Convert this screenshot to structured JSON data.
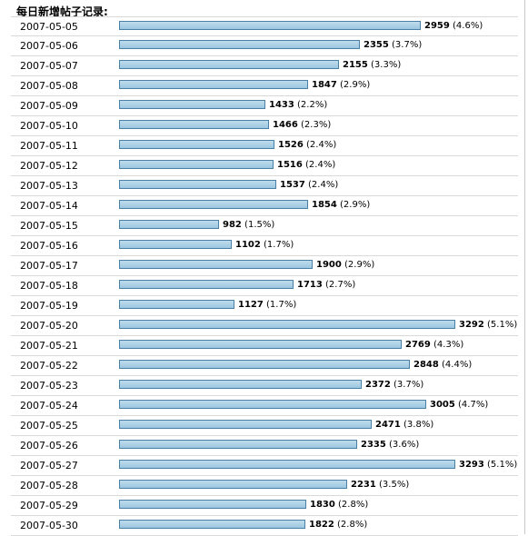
{
  "chart_data": {
    "type": "bar",
    "title": "每日新增帖子记录:",
    "categories": [
      "2007-05-05",
      "2007-05-06",
      "2007-05-07",
      "2007-05-08",
      "2007-05-09",
      "2007-05-10",
      "2007-05-11",
      "2007-05-12",
      "2007-05-13",
      "2007-05-14",
      "2007-05-15",
      "2007-05-16",
      "2007-05-17",
      "2007-05-18",
      "2007-05-19",
      "2007-05-20",
      "2007-05-21",
      "2007-05-22",
      "2007-05-23",
      "2007-05-24",
      "2007-05-25",
      "2007-05-26",
      "2007-05-27",
      "2007-05-28",
      "2007-05-29",
      "2007-05-30"
    ],
    "values": [
      2959,
      2355,
      2155,
      1847,
      1433,
      1466,
      1526,
      1516,
      1537,
      1854,
      982,
      1102,
      1900,
      1713,
      1127,
      3292,
      2769,
      2848,
      2372,
      3005,
      2471,
      2335,
      3293,
      2231,
      1830,
      1822
    ],
    "percents": [
      "(4.6%)",
      "(3.7%)",
      "(3.3%)",
      "(2.9%)",
      "(2.2%)",
      "(2.3%)",
      "(2.4%)",
      "(2.4%)",
      "(2.4%)",
      "(2.9%)",
      "(1.5%)",
      "(1.7%)",
      "(2.9%)",
      "(2.7%)",
      "(1.7%)",
      "(5.1%)",
      "(4.3%)",
      "(4.4%)",
      "(3.7%)",
      "(4.7%)",
      "(3.8%)",
      "(3.6%)",
      "(5.1%)",
      "(3.5%)",
      "(2.8%)",
      "(2.8%)"
    ],
    "bar_color": "#a9d0e6",
    "bar_border": "#4a7fa6"
  }
}
